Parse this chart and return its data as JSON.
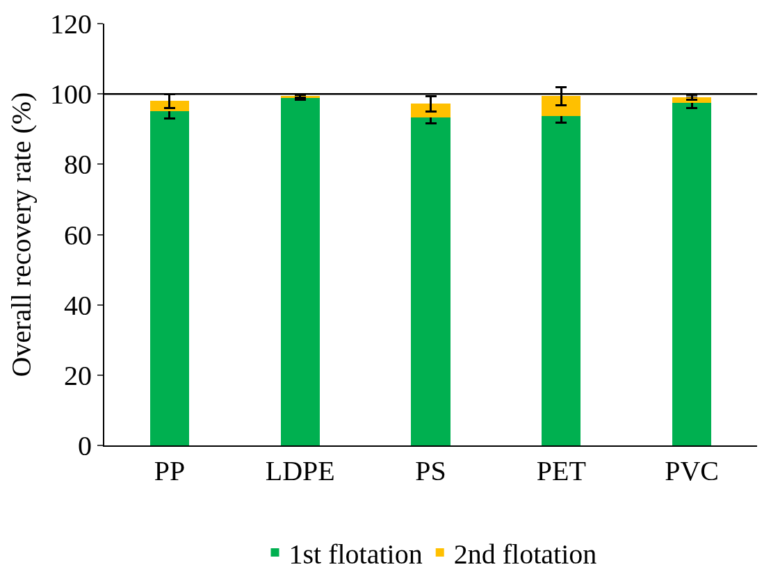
{
  "chart_data": {
    "type": "bar",
    "stacked": true,
    "ylabel": "Overall recovery rate (%)",
    "categories": [
      "PP",
      "LDPE",
      "PS",
      "PET",
      "PVC"
    ],
    "series": [
      {
        "name": "1st flotation",
        "color": "#00b050",
        "values": [
          95.1,
          98.8,
          93.3,
          93.7,
          97.5
        ],
        "errors": [
          2.0,
          0.5,
          1.6,
          1.8,
          1.5
        ]
      },
      {
        "name": "2nd flotation",
        "color": "#ffc000",
        "values": [
          2.9,
          0.7,
          3.9,
          5.7,
          1.6
        ],
        "errors": [
          2.0,
          0.5,
          2.2,
          2.6,
          0.7
        ]
      }
    ],
    "ylim": [
      0,
      120
    ],
    "yticks": [
      0,
      20,
      40,
      60,
      80,
      100,
      120
    ],
    "ref_lines": [
      {
        "axis": "y",
        "value": 100,
        "color": "#000000"
      }
    ],
    "legend": "bottom"
  }
}
